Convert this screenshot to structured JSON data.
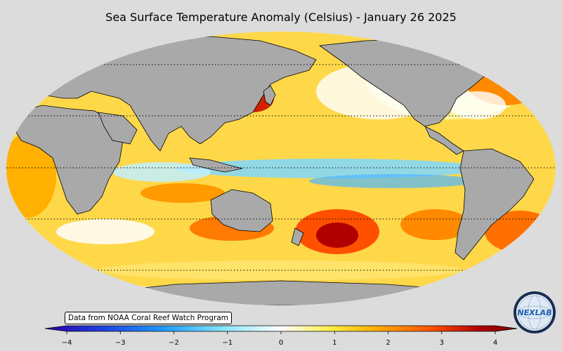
{
  "title": "Sea Surface Temperature Anomaly (Celsius) - January 26 2025",
  "credit": "Data from NOAA Coral Reef Watch Program",
  "logo": {
    "text": "NEXLAB",
    "icon": "nexlab-globe-logo"
  },
  "colorbar": {
    "min": -4,
    "max": 4,
    "ticks": [
      "−4",
      "−3",
      "−2",
      "−1",
      "0",
      "1",
      "2",
      "3",
      "4"
    ],
    "tick_values": [
      -4,
      -3,
      -2,
      -1,
      0,
      1,
      2,
      3,
      4
    ],
    "colors": [
      "#2b00a8",
      "#1f3fe0",
      "#1e9bff",
      "#7fe3ff",
      "#ffffff",
      "#fff04a",
      "#ffb000",
      "#ff5000",
      "#b00000",
      "#7a0000"
    ]
  },
  "map": {
    "projection": "robinson",
    "land_color": "#a9a9a9",
    "ocean_background": "#ffd84a",
    "graticule": "dotted"
  }
}
